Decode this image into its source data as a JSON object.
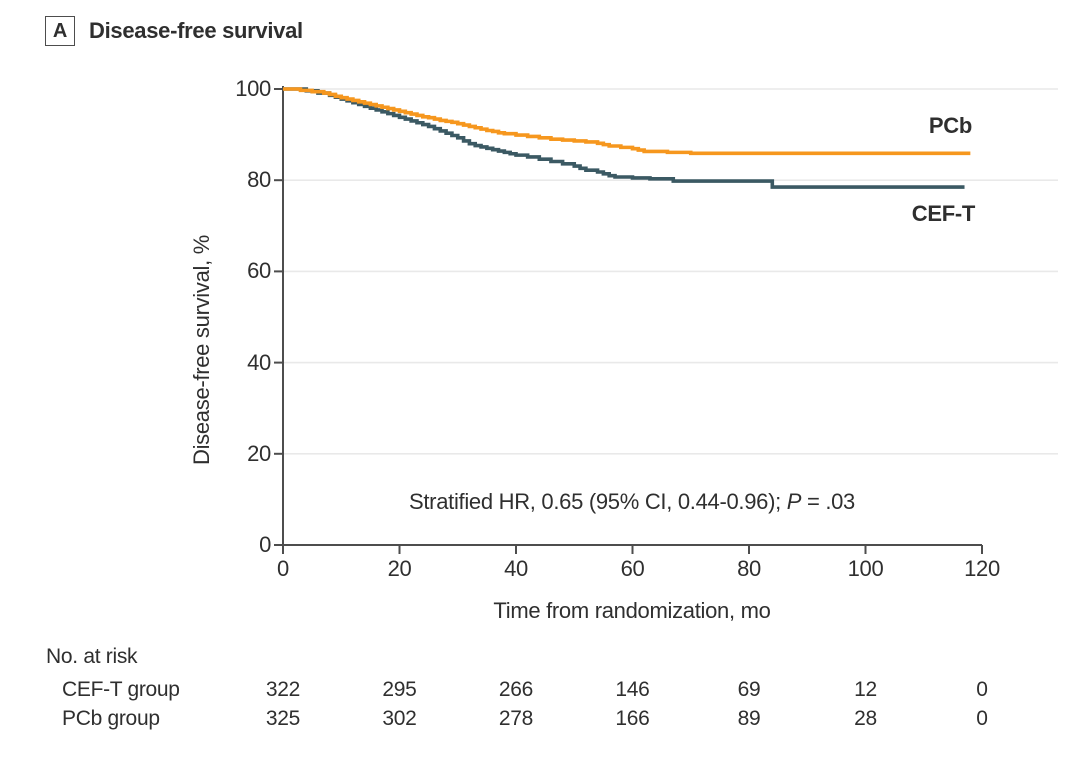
{
  "panel": {
    "label": "A",
    "title": "Disease-free survival"
  },
  "colors": {
    "pcb_orange": "#F6971E",
    "ceft_teal": "#3B5963",
    "axis_gray": "#4d4d4d",
    "gridline_gray": "#e9e9e9",
    "text_dark": "#2f2f2f"
  },
  "chart_data": {
    "type": "line",
    "subtype": "kaplan-meier-step",
    "title": "Disease-free survival",
    "xlabel": "Time from randomization, mo",
    "ylabel": "Disease-free survival, %",
    "xlim": [
      0,
      120
    ],
    "ylim": [
      0,
      100
    ],
    "xticks": [
      0,
      20,
      40,
      60,
      80,
      100,
      120
    ],
    "yticks": [
      0,
      20,
      40,
      60,
      80,
      100
    ],
    "grid": "horizontal",
    "legend_position": "end-of-line-labels",
    "annotation": {
      "prefix": "Stratified HR, 0.65 (95% CI, 0.44-0.96); ",
      "p_label": "P",
      "p_suffix": " = .03"
    },
    "series": [
      {
        "name": "CEF-T",
        "color": "#3B5963",
        "points": [
          [
            0,
            100
          ],
          [
            4,
            99.6
          ],
          [
            6,
            99.1
          ],
          [
            8,
            98.6
          ],
          [
            9,
            98.2
          ],
          [
            10,
            97.8
          ],
          [
            11,
            97.4
          ],
          [
            12,
            97.0
          ],
          [
            13,
            96.6
          ],
          [
            14,
            96.2
          ],
          [
            15,
            95.8
          ],
          [
            16,
            95.4
          ],
          [
            17,
            95.0
          ],
          [
            18,
            94.6
          ],
          [
            19,
            94.2
          ],
          [
            20,
            93.8
          ],
          [
            21,
            93.4
          ],
          [
            22,
            93.0
          ],
          [
            23,
            92.6
          ],
          [
            24,
            92.2
          ],
          [
            25,
            91.8
          ],
          [
            26,
            91.3
          ],
          [
            27,
            90.8
          ],
          [
            28,
            90.3
          ],
          [
            29,
            89.8
          ],
          [
            30,
            89.3
          ],
          [
            31,
            88.6
          ],
          [
            32,
            88.0
          ],
          [
            33,
            87.6
          ],
          [
            34,
            87.3
          ],
          [
            35,
            87.0
          ],
          [
            36,
            86.7
          ],
          [
            37,
            86.4
          ],
          [
            38,
            86.1
          ],
          [
            39,
            85.8
          ],
          [
            40,
            85.5
          ],
          [
            42,
            85.1
          ],
          [
            44,
            84.6
          ],
          [
            46,
            84.1
          ],
          [
            48,
            83.6
          ],
          [
            50,
            83.1
          ],
          [
            51,
            82.6
          ],
          [
            52,
            82.2
          ],
          [
            54,
            81.8
          ],
          [
            55,
            81.4
          ],
          [
            56,
            81.0
          ],
          [
            57,
            80.7
          ],
          [
            60,
            80.5
          ],
          [
            63,
            80.3
          ],
          [
            67,
            79.8
          ],
          [
            84,
            78.5
          ],
          [
            117,
            78.5
          ]
        ]
      },
      {
        "name": "PCb",
        "color": "#F6971E",
        "points": [
          [
            0,
            100
          ],
          [
            3,
            99.7
          ],
          [
            5,
            99.4
          ],
          [
            7,
            99.1
          ],
          [
            8,
            98.8
          ],
          [
            9,
            98.4
          ],
          [
            10,
            98.1
          ],
          [
            11,
            97.8
          ],
          [
            12,
            97.5
          ],
          [
            13,
            97.2
          ],
          [
            14,
            96.9
          ],
          [
            15,
            96.6
          ],
          [
            16,
            96.3
          ],
          [
            17,
            96.0
          ],
          [
            18,
            95.7
          ],
          [
            19,
            95.4
          ],
          [
            20,
            95.1
          ],
          [
            21,
            94.8
          ],
          [
            22,
            94.5
          ],
          [
            23,
            94.2
          ],
          [
            24,
            93.9
          ],
          [
            25,
            93.7
          ],
          [
            26,
            93.4
          ],
          [
            27,
            93.1
          ],
          [
            28,
            92.9
          ],
          [
            29,
            92.7
          ],
          [
            30,
            92.4
          ],
          [
            31,
            92.1
          ],
          [
            32,
            91.8
          ],
          [
            33,
            91.5
          ],
          [
            34,
            91.2
          ],
          [
            35,
            90.9
          ],
          [
            36,
            90.7
          ],
          [
            37,
            90.4
          ],
          [
            38,
            90.2
          ],
          [
            40,
            89.9
          ],
          [
            42,
            89.6
          ],
          [
            44,
            89.3
          ],
          [
            46,
            89.0
          ],
          [
            48,
            88.8
          ],
          [
            50,
            88.6
          ],
          [
            52,
            88.4
          ],
          [
            54,
            88.1
          ],
          [
            55,
            87.8
          ],
          [
            56,
            87.5
          ],
          [
            58,
            87.2
          ],
          [
            60,
            86.9
          ],
          [
            61,
            86.6
          ],
          [
            62,
            86.3
          ],
          [
            66,
            86.1
          ],
          [
            70,
            85.9
          ],
          [
            118,
            85.9
          ]
        ]
      }
    ]
  },
  "risk_table": {
    "title": "No. at risk",
    "timepoints": [
      0,
      20,
      40,
      60,
      80,
      100,
      120
    ],
    "rows": [
      {
        "label": "CEF-T group",
        "values": [
          "322",
          "295",
          "266",
          "146",
          "69",
          "12",
          "0"
        ]
      },
      {
        "label": "PCb group",
        "values": [
          "325",
          "302",
          "278",
          "166",
          "89",
          "28",
          "0"
        ]
      }
    ]
  }
}
